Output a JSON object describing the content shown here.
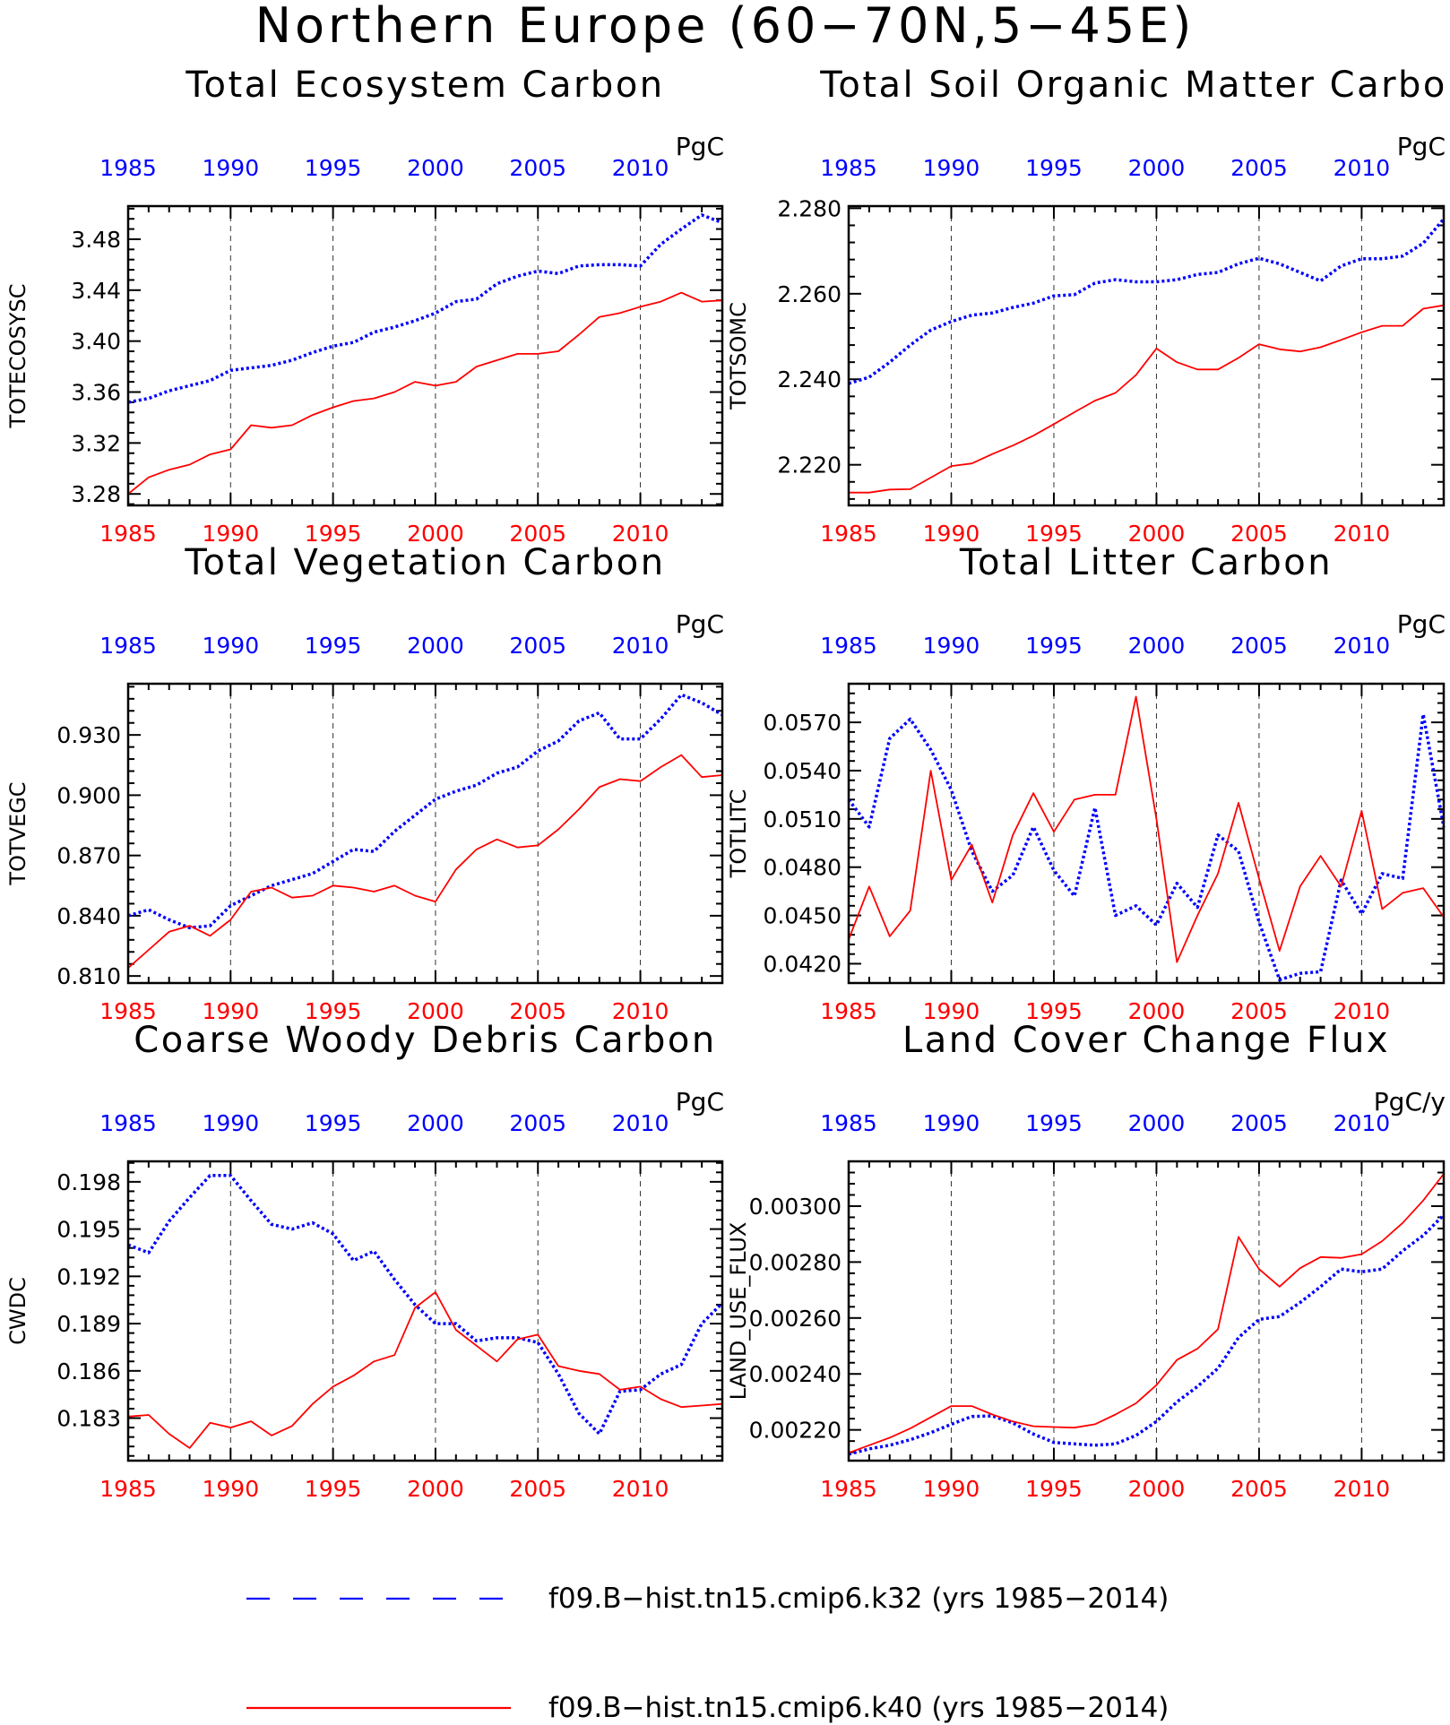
{
  "figure_title": "Northern Europe (60−70N,5−45E)",
  "colors": {
    "k32": "#0000ff",
    "k40": "#ff0000",
    "axis": "#000000"
  },
  "legend": [
    {
      "key": "k32",
      "label": "f09.B−hist.tn15.cmip6.k32 (yrs 1985−2014)"
    },
    {
      "key": "k40",
      "label": "f09.B−hist.tn15.cmip6.k40 (yrs 1985−2014)"
    }
  ],
  "chart_data": [
    {
      "type": "line",
      "title": "Total Ecosystem Carbon",
      "ylabel": "TOTECOSYSC",
      "units": "PgC",
      "xlim": [
        1985,
        2014
      ],
      "ylim": [
        3.271,
        3.506
      ],
      "x_ticks": [
        "1985",
        "1990",
        "1995",
        "2000",
        "2005",
        "2010"
      ],
      "y_ticks": [
        "3.28",
        "3.32",
        "3.36",
        "3.40",
        "3.44",
        "3.48"
      ],
      "x": [
        1985,
        1986,
        1987,
        1988,
        1989,
        1990,
        1991,
        1992,
        1993,
        1994,
        1995,
        1996,
        1997,
        1998,
        1999,
        2000,
        2001,
        2002,
        2003,
        2004,
        2005,
        2006,
        2007,
        2008,
        2009,
        2010,
        2011,
        2012,
        2013,
        2014
      ],
      "series": [
        {
          "name": "f09.B−hist.tn15.cmip6.k32 (yrs 1985−2014)",
          "key": "k32",
          "values": [
            3.352,
            3.355,
            3.361,
            3.365,
            3.369,
            3.377,
            3.379,
            3.381,
            3.385,
            3.391,
            3.396,
            3.399,
            3.407,
            3.411,
            3.416,
            3.422,
            3.431,
            3.433,
            3.445,
            3.451,
            3.455,
            3.453,
            3.459,
            3.46,
            3.46,
            3.459,
            3.476,
            3.488,
            3.499,
            3.493
          ]
        },
        {
          "name": "f09.B−hist.tn15.cmip6.k40 (yrs 1985−2014)",
          "key": "k40",
          "values": [
            3.28,
            3.293,
            3.299,
            3.303,
            3.311,
            3.315,
            3.334,
            3.332,
            3.334,
            3.342,
            3.348,
            3.353,
            3.355,
            3.36,
            3.368,
            3.365,
            3.368,
            3.38,
            3.385,
            3.39,
            3.39,
            3.392,
            3.405,
            3.419,
            3.422,
            3.427,
            3.431,
            3.438,
            3.431,
            3.432
          ]
        }
      ]
    },
    {
      "type": "line",
      "title": "Total Soil Organic Matter Carbon",
      "ylabel": "TOTSOMC",
      "units": "PgC",
      "xlim": [
        1985,
        2014
      ],
      "ylim": [
        2.2105,
        2.2805
      ],
      "x_ticks": [
        "1985",
        "1990",
        "1995",
        "2000",
        "2005",
        "2010"
      ],
      "y_ticks": [
        "2.220",
        "2.240",
        "2.260",
        "2.280"
      ],
      "x": [
        1985,
        1986,
        1987,
        1988,
        1989,
        1990,
        1991,
        1992,
        1993,
        1994,
        1995,
        1996,
        1997,
        1998,
        1999,
        2000,
        2001,
        2002,
        2003,
        2004,
        2005,
        2006,
        2007,
        2008,
        2009,
        2010,
        2011,
        2012,
        2013,
        2014
      ],
      "series": [
        {
          "name": "f09.B−hist.tn15.cmip6.k32 (yrs 1985−2014)",
          "key": "k32",
          "values": [
            2.239,
            2.2405,
            2.244,
            2.248,
            2.2515,
            2.2535,
            2.255,
            2.2555,
            2.2568,
            2.2578,
            2.2595,
            2.2598,
            2.2625,
            2.2633,
            2.2628,
            2.2628,
            2.2633,
            2.2645,
            2.265,
            2.267,
            2.2683,
            2.267,
            2.265,
            2.263,
            2.2665,
            2.2682,
            2.2682,
            2.2688,
            2.2718,
            2.2775
          ]
        },
        {
          "name": "f09.B−hist.tn15.cmip6.k40 (yrs 1985−2014)",
          "key": "k40",
          "values": [
            2.2135,
            2.2135,
            2.2142,
            2.2143,
            2.217,
            2.2197,
            2.2203,
            2.2225,
            2.2245,
            2.2268,
            2.2295,
            2.2323,
            2.235,
            2.2368,
            2.241,
            2.2472,
            2.244,
            2.2423,
            2.2423,
            2.245,
            2.2482,
            2.247,
            2.2465,
            2.2475,
            2.2492,
            2.251,
            2.2525,
            2.2525,
            2.2565,
            2.2573
          ]
        }
      ]
    },
    {
      "type": "line",
      "title": "Total Vegetation Carbon",
      "ylabel": "TOTVEGC",
      "units": "PgC",
      "xlim": [
        1985,
        2014
      ],
      "ylim": [
        0.8065,
        0.9555
      ],
      "x_ticks": [
        "1985",
        "1990",
        "1995",
        "2000",
        "2005",
        "2010"
      ],
      "y_ticks": [
        "0.810",
        "0.840",
        "0.870",
        "0.900",
        "0.930"
      ],
      "x": [
        1985,
        1986,
        1987,
        1988,
        1989,
        1990,
        1991,
        1992,
        1993,
        1994,
        1995,
        1996,
        1997,
        1998,
        1999,
        2000,
        2001,
        2002,
        2003,
        2004,
        2005,
        2006,
        2007,
        2008,
        2009,
        2010,
        2011,
        2012,
        2013,
        2014
      ],
      "series": [
        {
          "name": "f09.B−hist.tn15.cmip6.k32 (yrs 1985−2014)",
          "key": "k32",
          "values": [
            0.84,
            0.843,
            0.838,
            0.834,
            0.835,
            0.845,
            0.85,
            0.855,
            0.858,
            0.861,
            0.867,
            0.873,
            0.872,
            0.882,
            0.89,
            0.898,
            0.902,
            0.905,
            0.911,
            0.914,
            0.922,
            0.927,
            0.937,
            0.941,
            0.928,
            0.928,
            0.938,
            0.95,
            0.946,
            0.94
          ]
        },
        {
          "name": "f09.B−hist.tn15.cmip6.k40 (yrs 1985−2014)",
          "key": "k40",
          "values": [
            0.814,
            0.823,
            0.832,
            0.835,
            0.83,
            0.838,
            0.852,
            0.854,
            0.849,
            0.85,
            0.855,
            0.854,
            0.852,
            0.855,
            0.85,
            0.847,
            0.863,
            0.873,
            0.878,
            0.874,
            0.875,
            0.883,
            0.893,
            0.904,
            0.908,
            0.907,
            0.914,
            0.92,
            0.909,
            0.91
          ]
        }
      ]
    },
    {
      "type": "line",
      "title": "Total Litter Carbon",
      "ylabel": "TOTLITC",
      "units": "PgC",
      "xlim": [
        1985,
        2014
      ],
      "ylim": [
        0.0408,
        0.0594
      ],
      "x_ticks": [
        "1985",
        "1990",
        "1995",
        "2000",
        "2005",
        "2010"
      ],
      "y_ticks": [
        "0.0420",
        "0.0450",
        "0.0480",
        "0.0510",
        "0.0540",
        "0.0570"
      ],
      "x": [
        1985,
        1986,
        1987,
        1988,
        1989,
        1990,
        1991,
        1992,
        1993,
        1994,
        1995,
        1996,
        1997,
        1998,
        1999,
        2000,
        2001,
        2002,
        2003,
        2004,
        2005,
        2006,
        2007,
        2008,
        2009,
        2010,
        2011,
        2012,
        2013,
        2014
      ],
      "series": [
        {
          "name": "f09.B−hist.tn15.cmip6.k32 (yrs 1985−2014)",
          "key": "k32",
          "values": [
            0.0522,
            0.0505,
            0.056,
            0.0572,
            0.0553,
            0.0528,
            0.049,
            0.0465,
            0.0475,
            0.0505,
            0.0478,
            0.0462,
            0.0517,
            0.045,
            0.0456,
            0.0444,
            0.047,
            0.0455,
            0.05,
            0.049,
            0.0446,
            0.041,
            0.0414,
            0.0415,
            0.0472,
            0.0451,
            0.0476,
            0.0473,
            0.0575,
            0.0505
          ]
        },
        {
          "name": "f09.B−hist.tn15.cmip6.k40 (yrs 1985−2014)",
          "key": "k40",
          "values": [
            0.0435,
            0.0468,
            0.0437,
            0.0453,
            0.054,
            0.0472,
            0.0494,
            0.0458,
            0.05,
            0.0526,
            0.0502,
            0.0522,
            0.0525,
            0.0525,
            0.0586,
            0.051,
            0.0421,
            0.045,
            0.0476,
            0.052,
            0.0473,
            0.0428,
            0.0468,
            0.0487,
            0.0468,
            0.0515,
            0.0454,
            0.0464,
            0.0467,
            0.0449
          ]
        }
      ]
    },
    {
      "type": "line",
      "title": "Coarse Woody Debris Carbon",
      "ylabel": "CWDC",
      "units": "PgC",
      "xlim": [
        1985,
        2014
      ],
      "ylim": [
        0.1803,
        0.1993
      ],
      "x_ticks": [
        "1985",
        "1990",
        "1995",
        "2000",
        "2005",
        "2010"
      ],
      "y_ticks": [
        "0.183",
        "0.186",
        "0.189",
        "0.192",
        "0.195",
        "0.198"
      ],
      "x": [
        1985,
        1986,
        1987,
        1988,
        1989,
        1990,
        1991,
        1992,
        1993,
        1994,
        1995,
        1996,
        1997,
        1998,
        1999,
        2000,
        2001,
        2002,
        2003,
        2004,
        2005,
        2006,
        2007,
        2008,
        2009,
        2010,
        2011,
        2012,
        2013,
        2014
      ],
      "series": [
        {
          "name": "f09.B−hist.tn15.cmip6.k32 (yrs 1985−2014)",
          "key": "k32",
          "values": [
            0.194,
            0.1935,
            0.1955,
            0.197,
            0.1984,
            0.1984,
            0.1968,
            0.1953,
            0.195,
            0.1954,
            0.1947,
            0.193,
            0.1936,
            0.1918,
            0.1902,
            0.189,
            0.189,
            0.1879,
            0.1881,
            0.1881,
            0.1878,
            0.1858,
            0.1833,
            0.182,
            0.1847,
            0.1848,
            0.1858,
            0.1864,
            0.189,
            0.1903
          ]
        },
        {
          "name": "f09.B−hist.tn15.cmip6.k40 (yrs 1985−2014)",
          "key": "k40",
          "values": [
            0.1831,
            0.1832,
            0.182,
            0.1811,
            0.1827,
            0.1824,
            0.1828,
            0.1819,
            0.1825,
            0.1839,
            0.185,
            0.1857,
            0.1866,
            0.187,
            0.19,
            0.191,
            0.1886,
            0.1876,
            0.1866,
            0.188,
            0.1883,
            0.1863,
            0.186,
            0.1858,
            0.1848,
            0.185,
            0.1842,
            0.1837,
            0.1838,
            0.1839
          ]
        }
      ]
    },
    {
      "type": "line",
      "title": "Land Cover Change Flux",
      "ylabel": "LAND_USE_FLUX",
      "units": "PgC/y",
      "xlim": [
        1985,
        2014
      ],
      "ylim": [
        0.00209,
        0.00316
      ],
      "x_ticks": [
        "1985",
        "1990",
        "1995",
        "2000",
        "2005",
        "2010"
      ],
      "y_ticks": [
        "0.00220",
        "0.00240",
        "0.00260",
        "0.00280",
        "0.00300"
      ],
      "x": [
        1985,
        1986,
        1987,
        1988,
        1989,
        1990,
        1991,
        1992,
        1993,
        1994,
        1995,
        1996,
        1997,
        1998,
        1999,
        2000,
        2001,
        2002,
        2003,
        2004,
        2005,
        2006,
        2007,
        2008,
        2009,
        2010,
        2011,
        2012,
        2013,
        2014
      ],
      "series": [
        {
          "name": "f09.B−hist.tn15.cmip6.k32 (yrs 1985−2014)",
          "key": "k32",
          "values": [
            0.002113,
            0.002132,
            0.002145,
            0.002165,
            0.00219,
            0.00222,
            0.002248,
            0.00225,
            0.002225,
            0.002185,
            0.002155,
            0.00215,
            0.002145,
            0.00215,
            0.00218,
            0.00223,
            0.0023,
            0.002355,
            0.00242,
            0.00253,
            0.002595,
            0.002605,
            0.002655,
            0.002712,
            0.002775,
            0.002765,
            0.002775,
            0.00284,
            0.002895,
            0.002968
          ]
        },
        {
          "name": "f09.B−hist.tn15.cmip6.k40 (yrs 1985−2014)",
          "key": "k40",
          "values": [
            0.002118,
            0.002145,
            0.002172,
            0.002205,
            0.002245,
            0.002285,
            0.002285,
            0.002255,
            0.00223,
            0.002213,
            0.00221,
            0.002208,
            0.00222,
            0.002255,
            0.002295,
            0.00236,
            0.00245,
            0.00249,
            0.00256,
            0.00289,
            0.002775,
            0.002712,
            0.002778,
            0.002818,
            0.002815,
            0.002828,
            0.002875,
            0.00294,
            0.00302,
            0.003115
          ]
        }
      ]
    }
  ]
}
